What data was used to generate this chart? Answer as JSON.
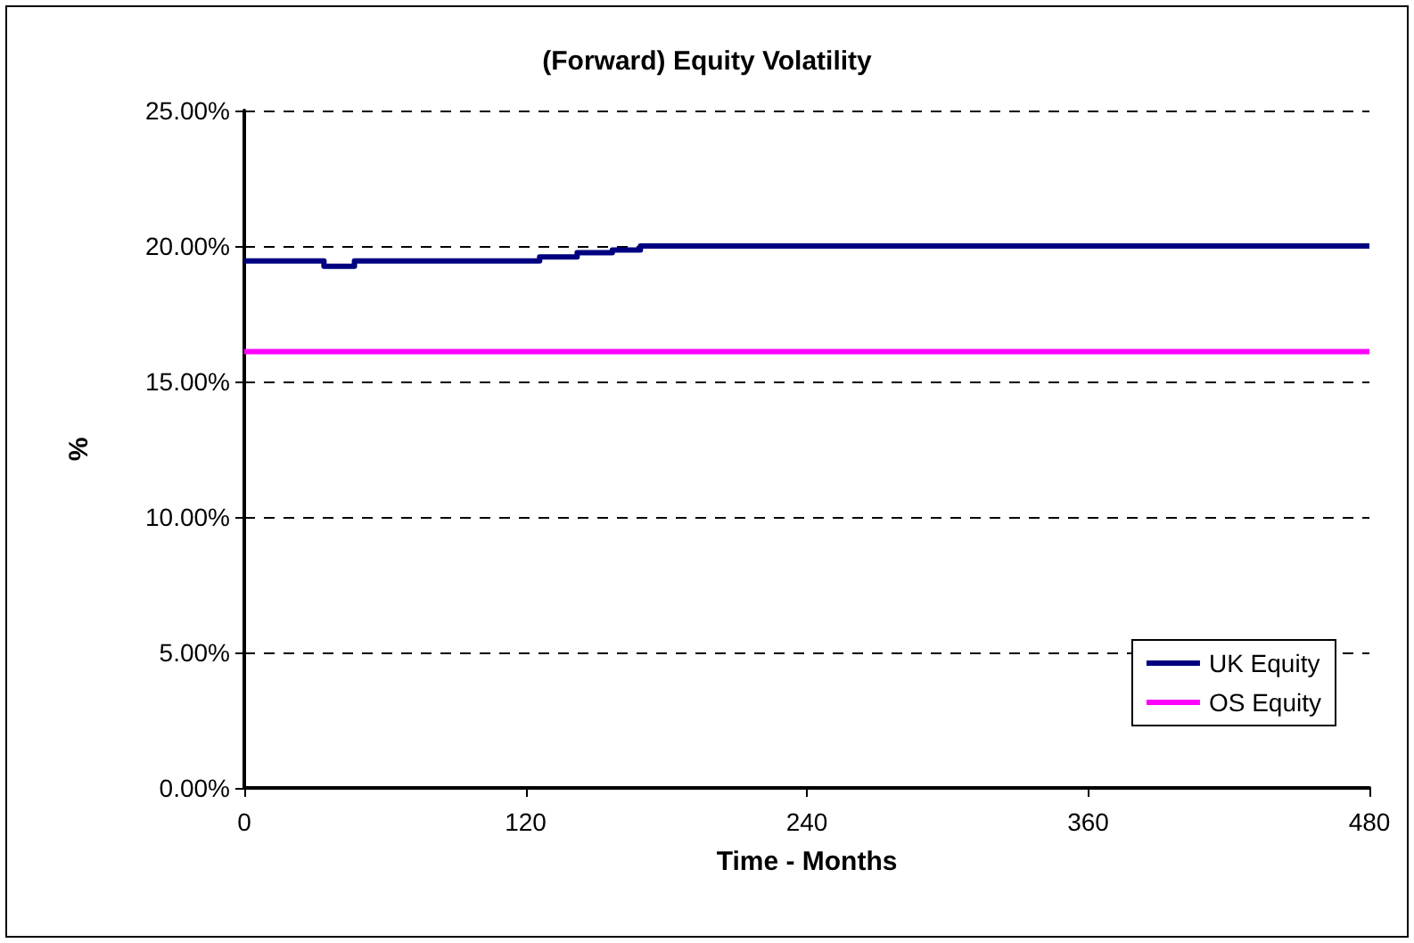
{
  "chart_data": {
    "type": "line",
    "title": "(Forward) Equity Volatility",
    "xlabel": "Time - Months",
    "ylabel": "%",
    "series": [
      {
        "name": "UK Equity",
        "type": "step",
        "color": "#000080",
        "x": [
          0,
          34,
          47,
          126,
          142,
          157,
          169,
          480
        ],
        "values": [
          19.45,
          19.25,
          19.45,
          19.6,
          19.75,
          19.85,
          20.0,
          20.0
        ]
      },
      {
        "name": "OS Equity",
        "color": "#ff00ff",
        "x": [
          0,
          480
        ],
        "values": [
          16.1,
          16.1
        ]
      }
    ],
    "xlim": [
      0,
      480
    ],
    "xticks": [
      0,
      120,
      240,
      360,
      480
    ],
    "ylim": [
      0,
      25
    ],
    "yticks": [
      {
        "value": 0,
        "label": "0.00%"
      },
      {
        "value": 5,
        "label": "5.00%"
      },
      {
        "value": 10,
        "label": "10.00%"
      },
      {
        "value": 15,
        "label": "15.00%"
      },
      {
        "value": 20,
        "label": "20.00%"
      },
      {
        "value": 25,
        "label": "25.00%"
      }
    ],
    "grid": "y",
    "legend": "bottom right",
    "marker": "none"
  }
}
